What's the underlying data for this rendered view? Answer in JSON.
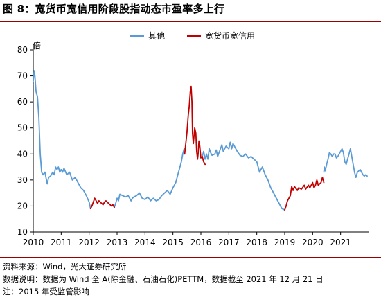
{
  "title": "图 8：宽货币宽信用阶段股指动态市盈率多上行",
  "notes": {
    "source": "资料来源：Wind，光大证券研究所",
    "explanation": "数据说明：数据为 Wind 全 A(除金融、石油石化)PETTM，数据截至 2021 年 12 月 21 日",
    "note": "注：2015 年受监管影响"
  },
  "chart_data": {
    "type": "line",
    "title": "",
    "xlabel": "",
    "ylabel": "倍",
    "xlim": [
      2010,
      2022
    ],
    "ylim": [
      10,
      80
    ],
    "yticks": [
      10,
      20,
      30,
      40,
      50,
      60,
      70,
      80
    ],
    "xticks": [
      "2010",
      "2011",
      "2012",
      "2013",
      "2014",
      "2015",
      "2016",
      "2017",
      "2018",
      "2019",
      "2020",
      "2021"
    ],
    "legend_position": "top",
    "colors": {
      "other": "#5b9bd5",
      "loose": "#c00000",
      "axis": "#000000"
    },
    "series": [
      {
        "name": "其他",
        "key": "other",
        "segments": [
          [
            [
              2010.0,
              68
            ],
            [
              2010.03,
              72
            ],
            [
              2010.06,
              70
            ],
            [
              2010.1,
              64
            ],
            [
              2010.15,
              62
            ],
            [
              2010.2,
              54
            ],
            [
              2010.25,
              40
            ],
            [
              2010.3,
              33
            ],
            [
              2010.35,
              32
            ],
            [
              2010.42,
              33
            ],
            [
              2010.5,
              28.5
            ],
            [
              2010.55,
              31
            ],
            [
              2010.62,
              31.5
            ],
            [
              2010.7,
              33
            ],
            [
              2010.75,
              32
            ],
            [
              2010.8,
              35
            ],
            [
              2010.85,
              34
            ],
            [
              2010.9,
              35
            ],
            [
              2010.95,
              33
            ],
            [
              2011.0,
              34
            ],
            [
              2011.05,
              33
            ],
            [
              2011.1,
              34.5
            ],
            [
              2011.2,
              32
            ],
            [
              2011.3,
              33
            ],
            [
              2011.4,
              30
            ],
            [
              2011.5,
              31
            ],
            [
              2011.6,
              29
            ],
            [
              2011.7,
              27
            ],
            [
              2011.8,
              26
            ],
            [
              2011.9,
              24
            ],
            [
              2012.0,
              21.5
            ],
            [
              2012.05,
              19
            ]
          ],
          [
            [
              2012.9,
              19.5
            ],
            [
              2012.95,
              21
            ],
            [
              2013.0,
              23
            ],
            [
              2013.05,
              22
            ],
            [
              2013.1,
              24.5
            ],
            [
              2013.2,
              24
            ],
            [
              2013.3,
              23.5
            ],
            [
              2013.4,
              24
            ],
            [
              2013.5,
              22
            ],
            [
              2013.55,
              23
            ],
            [
              2013.6,
              23.5
            ],
            [
              2013.7,
              24
            ],
            [
              2013.8,
              25
            ],
            [
              2013.85,
              24
            ],
            [
              2013.9,
              23
            ],
            [
              2014.0,
              22.5
            ],
            [
              2014.1,
              23.5
            ],
            [
              2014.2,
              22
            ],
            [
              2014.3,
              23
            ],
            [
              2014.4,
              22
            ],
            [
              2014.5,
              22.5
            ],
            [
              2014.6,
              24
            ],
            [
              2014.7,
              25
            ],
            [
              2014.8,
              26
            ],
            [
              2014.9,
              24.5
            ],
            [
              2015.0,
              27
            ],
            [
              2015.1,
              29
            ],
            [
              2015.2,
              33
            ],
            [
              2015.3,
              37
            ],
            [
              2015.35,
              40
            ],
            [
              2015.4,
              42
            ]
          ],
          [
            [
              2016.0,
              38.5
            ],
            [
              2016.05,
              39
            ],
            [
              2016.1,
              41
            ],
            [
              2016.15,
              38
            ],
            [
              2016.2,
              40
            ],
            [
              2016.25,
              38
            ],
            [
              2016.3,
              42
            ],
            [
              2016.35,
              40.5
            ],
            [
              2016.4,
              39.5
            ],
            [
              2016.5,
              40
            ],
            [
              2016.55,
              41.5
            ],
            [
              2016.6,
              39
            ],
            [
              2016.7,
              42
            ],
            [
              2016.75,
              43.5
            ],
            [
              2016.8,
              41
            ],
            [
              2016.9,
              43
            ],
            [
              2017.0,
              42
            ],
            [
              2017.05,
              44.5
            ],
            [
              2017.1,
              42
            ],
            [
              2017.15,
              44
            ],
            [
              2017.2,
              43
            ],
            [
              2017.3,
              41
            ],
            [
              2017.4,
              39.5
            ],
            [
              2017.5,
              39
            ],
            [
              2017.6,
              40
            ],
            [
              2017.7,
              38.5
            ],
            [
              2017.8,
              39
            ],
            [
              2017.9,
              38
            ],
            [
              2018.0,
              37
            ],
            [
              2018.1,
              33
            ],
            [
              2018.2,
              35
            ],
            [
              2018.3,
              32
            ],
            [
              2018.4,
              30
            ],
            [
              2018.5,
              27
            ],
            [
              2018.6,
              25
            ],
            [
              2018.7,
              23
            ],
            [
              2018.8,
              21
            ],
            [
              2018.85,
              20
            ],
            [
              2018.9,
              19
            ],
            [
              2019.0,
              18.5
            ]
          ],
          [
            [
              2020.4,
              33
            ],
            [
              2020.42,
              35
            ],
            [
              2020.45,
              33.5
            ],
            [
              2020.5,
              36
            ],
            [
              2020.55,
              38
            ],
            [
              2020.6,
              40.5
            ],
            [
              2020.65,
              40
            ],
            [
              2020.7,
              39
            ],
            [
              2020.75,
              40
            ],
            [
              2020.8,
              40
            ],
            [
              2020.85,
              38.5
            ],
            [
              2020.9,
              39
            ],
            [
              2021.0,
              41
            ],
            [
              2021.05,
              42
            ],
            [
              2021.1,
              40.5
            ],
            [
              2021.15,
              37
            ],
            [
              2021.2,
              36
            ],
            [
              2021.25,
              38
            ],
            [
              2021.3,
              40
            ],
            [
              2021.35,
              42
            ],
            [
              2021.4,
              39
            ],
            [
              2021.45,
              36
            ],
            [
              2021.5,
              33
            ],
            [
              2021.55,
              31
            ],
            [
              2021.6,
              33
            ],
            [
              2021.7,
              34
            ],
            [
              2021.75,
              33
            ],
            [
              2021.8,
              32
            ],
            [
              2021.85,
              31.5
            ],
            [
              2021.9,
              32
            ],
            [
              2021.95,
              31.5
            ]
          ]
        ]
      },
      {
        "name": "宽货币宽信用",
        "key": "loose",
        "segments": [
          [
            [
              2012.05,
              19
            ],
            [
              2012.1,
              20
            ],
            [
              2012.15,
              21.5
            ],
            [
              2012.2,
              23
            ],
            [
              2012.25,
              22
            ],
            [
              2012.3,
              21
            ],
            [
              2012.35,
              22
            ],
            [
              2012.4,
              21.5
            ],
            [
              2012.5,
              20.5
            ],
            [
              2012.55,
              21.5
            ],
            [
              2012.6,
              22
            ],
            [
              2012.7,
              21
            ],
            [
              2012.8,
              20
            ],
            [
              2012.85,
              20.5
            ],
            [
              2012.9,
              19.5
            ]
          ],
          [
            [
              2015.42,
              40
            ],
            [
              2015.45,
              43
            ],
            [
              2015.5,
              48
            ],
            [
              2015.55,
              55
            ],
            [
              2015.58,
              58
            ],
            [
              2015.62,
              64
            ],
            [
              2015.65,
              66
            ],
            [
              2015.68,
              60
            ],
            [
              2015.7,
              48
            ],
            [
              2015.73,
              44
            ],
            [
              2015.78,
              50
            ],
            [
              2015.82,
              48
            ],
            [
              2015.85,
              41
            ],
            [
              2015.88,
              38
            ],
            [
              2015.9,
              40
            ],
            [
              2015.93,
              45
            ],
            [
              2015.96,
              43
            ],
            [
              2016.0,
              38.5
            ],
            [
              2016.05,
              39
            ],
            [
              2016.1,
              37
            ],
            [
              2016.15,
              36
            ]
          ],
          [
            [
              2019.0,
              18.5
            ],
            [
              2019.05,
              20
            ],
            [
              2019.1,
              22
            ],
            [
              2019.2,
              24
            ],
            [
              2019.25,
              27.5
            ],
            [
              2019.3,
              26
            ],
            [
              2019.35,
              27.5
            ],
            [
              2019.45,
              26
            ],
            [
              2019.5,
              27
            ],
            [
              2019.6,
              26.5
            ],
            [
              2019.7,
              28
            ],
            [
              2019.75,
              26.5
            ],
            [
              2019.85,
              28
            ],
            [
              2019.9,
              27
            ],
            [
              2020.0,
              29
            ],
            [
              2020.05,
              27
            ],
            [
              2020.1,
              28
            ],
            [
              2020.15,
              30
            ],
            [
              2020.2,
              28
            ],
            [
              2020.25,
              28.5
            ],
            [
              2020.3,
              29
            ],
            [
              2020.35,
              31
            ],
            [
              2020.4,
              29
            ]
          ]
        ]
      }
    ]
  }
}
